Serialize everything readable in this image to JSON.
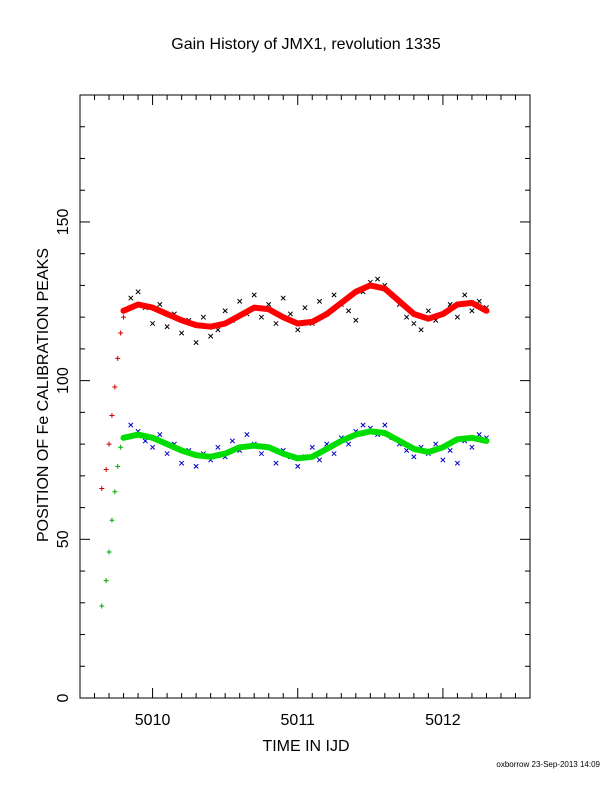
{
  "chart_data": {
    "type": "scatter",
    "title": "Gain History of JMX1, revolution 1335",
    "xlabel": "TIME IN IJD",
    "ylabel": "POSITION OF Fe CALIBRATION PEAKS",
    "xlim": [
      5009.5,
      5012.6
    ],
    "ylim": [
      0,
      190
    ],
    "xticks": [
      5010,
      5011,
      5012
    ],
    "yticks": [
      0,
      50,
      100,
      150
    ],
    "grid": false,
    "series": [
      {
        "name": "",
        "kind": "points-x",
        "color": "#000000",
        "x": [
          5009.85,
          5009.9,
          5009.95,
          5010.0,
          5010.05,
          5010.1,
          5010.15,
          5010.2,
          5010.25,
          5010.3,
          5010.35,
          5010.4,
          5010.45,
          5010.5,
          5010.55,
          5010.6,
          5010.65,
          5010.7,
          5010.75,
          5010.8,
          5010.85,
          5010.9,
          5010.95,
          5011.0,
          5011.05,
          5011.1,
          5011.15,
          5011.2,
          5011.25,
          5011.3,
          5011.35,
          5011.4,
          5011.45,
          5011.5,
          5011.55,
          5011.6,
          5011.65,
          5011.7,
          5011.75,
          5011.8,
          5011.85,
          5011.9,
          5011.95,
          5012.0,
          5012.05,
          5012.1,
          5012.15,
          5012.2,
          5012.25,
          5012.3
        ],
        "y": [
          126,
          128,
          123,
          118,
          124,
          117,
          121,
          115,
          119,
          112,
          120,
          114,
          116,
          122,
          119,
          125,
          121,
          127,
          120,
          124,
          118,
          126,
          121,
          116,
          123,
          118,
          125,
          121,
          127,
          124,
          122,
          119,
          128,
          131,
          132,
          130,
          127,
          124,
          120,
          118,
          116,
          122,
          119,
          121,
          124,
          120,
          127,
          122,
          125,
          123
        ]
      },
      {
        "name": "",
        "kind": "points-x",
        "color": "#0000cc",
        "x": [
          5009.85,
          5009.9,
          5009.95,
          5010.0,
          5010.05,
          5010.1,
          5010.15,
          5010.2,
          5010.25,
          5010.3,
          5010.35,
          5010.4,
          5010.45,
          5010.5,
          5010.55,
          5010.6,
          5010.65,
          5010.7,
          5010.75,
          5010.8,
          5010.85,
          5010.9,
          5010.95,
          5011.0,
          5011.05,
          5011.1,
          5011.15,
          5011.2,
          5011.25,
          5011.3,
          5011.35,
          5011.4,
          5011.45,
          5011.5,
          5011.55,
          5011.6,
          5011.65,
          5011.7,
          5011.75,
          5011.8,
          5011.85,
          5011.9,
          5011.95,
          5012.0,
          5012.05,
          5012.1,
          5012.15,
          5012.2,
          5012.25,
          5012.3
        ],
        "y": [
          86,
          84,
          81,
          79,
          83,
          77,
          80,
          74,
          78,
          73,
          77,
          75,
          79,
          76,
          81,
          78,
          83,
          80,
          77,
          79,
          74,
          78,
          76,
          73,
          76,
          79,
          75,
          80,
          77,
          82,
          80,
          84,
          86,
          85,
          83,
          86,
          82,
          80,
          78,
          76,
          79,
          77,
          80,
          75,
          78,
          74,
          81,
          79,
          83,
          82
        ]
      },
      {
        "name": "",
        "kind": "rise-plus",
        "color": "#cc0000",
        "x": [
          5009.65,
          5009.68,
          5009.7,
          5009.72,
          5009.74,
          5009.76,
          5009.78,
          5009.8
        ],
        "y": [
          66,
          72,
          80,
          89,
          98,
          107,
          115,
          120
        ]
      },
      {
        "name": "",
        "kind": "rise-plus",
        "color": "#00aa00",
        "x": [
          5009.65,
          5009.68,
          5009.7,
          5009.72,
          5009.74,
          5009.76,
          5009.78,
          5009.8
        ],
        "y": [
          29,
          37,
          46,
          56,
          65,
          73,
          79,
          82
        ]
      },
      {
        "name": "",
        "kind": "fit",
        "color": "#ff0000",
        "x": [
          5009.8,
          5009.9,
          5010.0,
          5010.1,
          5010.2,
          5010.3,
          5010.4,
          5010.5,
          5010.6,
          5010.7,
          5010.8,
          5010.9,
          5011.0,
          5011.1,
          5011.2,
          5011.3,
          5011.4,
          5011.5,
          5011.6,
          5011.7,
          5011.8,
          5011.9,
          5012.0,
          5012.1,
          5012.2,
          5012.3
        ],
        "y": [
          122,
          124,
          123,
          121,
          119,
          117.5,
          117,
          118,
          120.5,
          123,
          122.5,
          120,
          118,
          118.5,
          121,
          124.5,
          128,
          130,
          129,
          125,
          121,
          119.5,
          121,
          124,
          124.5,
          122
        ]
      },
      {
        "name": "",
        "kind": "fit",
        "color": "#00dd00",
        "x": [
          5009.8,
          5009.9,
          5010.0,
          5010.1,
          5010.2,
          5010.3,
          5010.4,
          5010.5,
          5010.6,
          5010.7,
          5010.8,
          5010.9,
          5011.0,
          5011.1,
          5011.2,
          5011.3,
          5011.4,
          5011.5,
          5011.6,
          5011.7,
          5011.8,
          5011.9,
          5012.0,
          5012.1,
          5012.2,
          5012.3
        ],
        "y": [
          82,
          83,
          82,
          80,
          78,
          76.5,
          76,
          77,
          79,
          79.5,
          79,
          77,
          75.5,
          76,
          78.5,
          81,
          83,
          84,
          83.5,
          81,
          78.5,
          77.5,
          79,
          81.5,
          82,
          81
        ]
      }
    ]
  },
  "footer": "oxborrow 23-Sep-2013 14:09"
}
